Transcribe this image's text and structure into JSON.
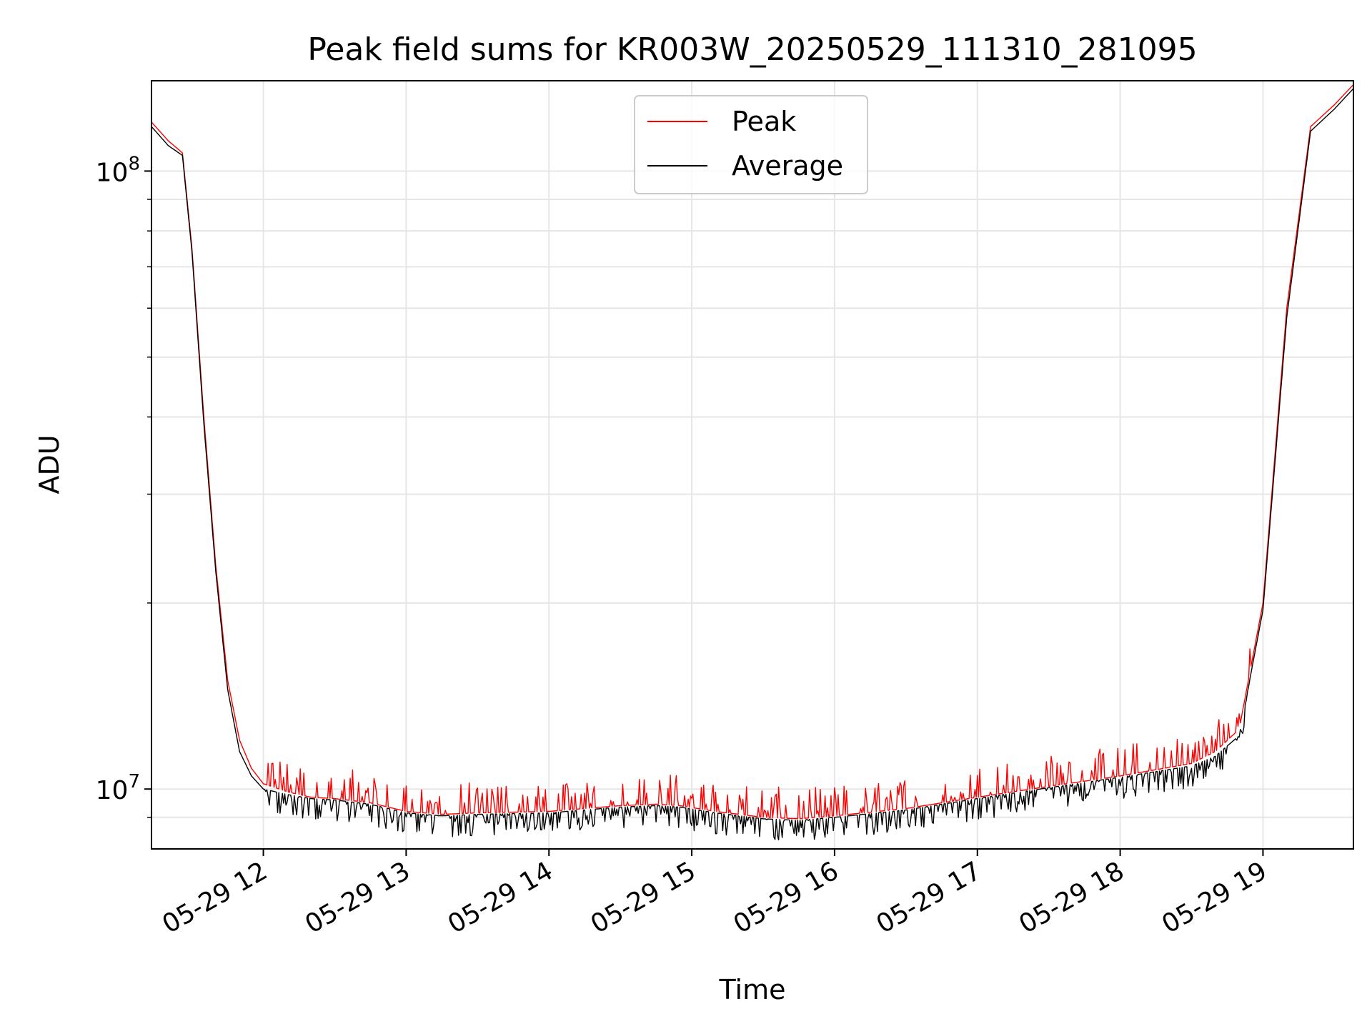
{
  "chart_data": {
    "type": "line",
    "title": "Peak field sums for KR003W_20250529_111310_281095",
    "xlabel": "Time",
    "ylabel": "ADU",
    "yscale": "log",
    "ylim": [
      8000000,
      140000000
    ],
    "xlim": [
      "2025-05-29 11:13",
      "2025-05-29 19:38"
    ],
    "x_ticks": [
      "05-29 12",
      "05-29 13",
      "05-29 14",
      "05-29 15",
      "05-29 16",
      "05-29 17",
      "05-29 18",
      "05-29 19"
    ],
    "y_ticks": [
      {
        "value": 10000000,
        "base": "10",
        "exp": "7"
      },
      {
        "value": 100000000,
        "base": "10",
        "exp": "8"
      }
    ],
    "grid": true,
    "legend_position": "upper center",
    "series": [
      {
        "name": "Peak",
        "color": "#ff0000",
        "x": [
          "2025-05-29 11:13",
          "2025-05-29 11:20",
          "2025-05-29 11:26",
          "2025-05-29 11:30",
          "2025-05-29 11:35",
          "2025-05-29 11:40",
          "2025-05-29 11:45",
          "2025-05-29 11:50",
          "2025-05-29 11:55",
          "2025-05-29 12:00",
          "2025-05-29 12:10",
          "2025-05-29 12:20",
          "2025-05-29 12:30",
          "2025-05-29 12:45",
          "2025-05-29 13:00",
          "2025-05-29 13:15",
          "2025-05-29 13:30",
          "2025-05-29 14:00",
          "2025-05-29 14:15",
          "2025-05-29 14:30",
          "2025-05-29 14:45",
          "2025-05-29 14:55",
          "2025-05-29 15:10",
          "2025-05-29 15:30",
          "2025-05-29 15:45",
          "2025-05-29 16:00",
          "2025-05-29 16:30",
          "2025-05-29 17:00",
          "2025-05-29 17:30",
          "2025-05-29 18:00",
          "2025-05-29 18:30",
          "2025-05-29 18:40",
          "2025-05-29 18:50",
          "2025-05-29 19:00",
          "2025-05-29 19:10",
          "2025-05-29 19:20",
          "2025-05-29 19:30",
          "2025-05-29 19:38"
        ],
        "y": [
          120000000,
          112000000,
          107000000,
          75000000,
          40000000,
          23000000,
          15000000,
          12000000,
          10800000,
          10200000,
          9900000,
          9700000,
          9650000,
          9500000,
          9200000,
          9100000,
          9150000,
          9200000,
          9300000,
          9400000,
          9450000,
          9400000,
          9200000,
          9000000,
          8950000,
          9050000,
          9300000,
          9700000,
          10100000,
          10500000,
          11000000,
          11500000,
          12500000,
          20000000,
          60000000,
          118000000,
          128000000,
          138000000
        ]
      },
      {
        "name": "Average",
        "color": "#000000",
        "x": [
          "2025-05-29 11:13",
          "2025-05-29 11:20",
          "2025-05-29 11:26",
          "2025-05-29 11:30",
          "2025-05-29 11:35",
          "2025-05-29 11:40",
          "2025-05-29 11:45",
          "2025-05-29 11:50",
          "2025-05-29 11:55",
          "2025-05-29 12:00",
          "2025-05-29 12:10",
          "2025-05-29 12:20",
          "2025-05-29 12:30",
          "2025-05-29 12:45",
          "2025-05-29 13:00",
          "2025-05-29 13:15",
          "2025-05-29 13:30",
          "2025-05-29 14:00",
          "2025-05-29 14:15",
          "2025-05-29 14:30",
          "2025-05-29 14:45",
          "2025-05-29 14:55",
          "2025-05-29 15:10",
          "2025-05-29 15:30",
          "2025-05-29 15:45",
          "2025-05-29 16:00",
          "2025-05-29 16:30",
          "2025-05-29 17:00",
          "2025-05-29 17:30",
          "2025-05-29 18:00",
          "2025-05-29 18:30",
          "2025-05-29 18:40",
          "2025-05-29 18:50",
          "2025-05-29 19:00",
          "2025-05-29 19:10",
          "2025-05-29 19:20",
          "2025-05-29 19:30",
          "2025-05-29 19:38"
        ],
        "y": [
          118000000,
          110000000,
          106000000,
          74000000,
          39000000,
          22500000,
          14500000,
          11500000,
          10500000,
          10000000,
          9800000,
          9650000,
          9600000,
          9450000,
          9150000,
          9050000,
          9100000,
          9150000,
          9250000,
          9350000,
          9400000,
          9350000,
          9150000,
          8950000,
          8900000,
          9000000,
          9250000,
          9650000,
          10050000,
          10450000,
          10900000,
          11300000,
          12200000,
          19500000,
          58000000,
          116000000,
          126000000,
          136000000
        ]
      }
    ]
  }
}
